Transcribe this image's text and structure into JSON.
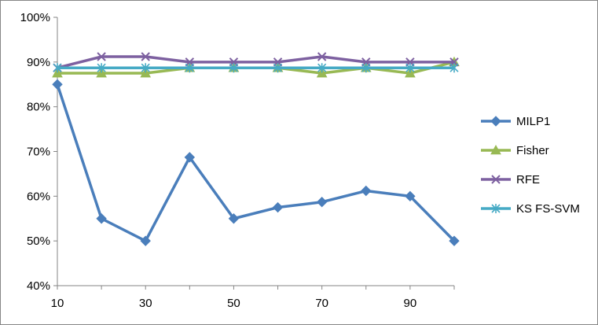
{
  "chart_data": {
    "type": "line",
    "title": "",
    "xlabel": "",
    "ylabel": "",
    "x": [
      10,
      20,
      30,
      40,
      50,
      60,
      70,
      80,
      90,
      100
    ],
    "x_tick_labels": [
      "10",
      "30",
      "50",
      "70",
      "90"
    ],
    "x_tick_values": [
      10,
      30,
      50,
      70,
      90
    ],
    "y_tick_labels": [
      "40%",
      "50%",
      "60%",
      "70%",
      "80%",
      "90%",
      "100%"
    ],
    "y_tick_values": [
      40,
      50,
      60,
      70,
      80,
      90,
      100
    ],
    "ylim": [
      40,
      100
    ],
    "grid": false,
    "legend_position": "right",
    "series": [
      {
        "name": "MILP1",
        "marker": "diamond",
        "color": "#4a7ebb",
        "values": [
          85,
          55,
          50,
          68.7,
          55,
          57.5,
          58.7,
          61.2,
          60,
          50
        ]
      },
      {
        "name": "Fisher",
        "marker": "triangle",
        "color": "#98b954",
        "values": [
          87.5,
          87.5,
          87.5,
          88.7,
          88.7,
          88.7,
          87.5,
          88.7,
          87.5,
          90
        ]
      },
      {
        "name": "RFE",
        "marker": "x",
        "color": "#7d60a0",
        "values": [
          88.7,
          91.2,
          91.2,
          90,
          90,
          90,
          91.2,
          90,
          90,
          90
        ]
      },
      {
        "name": "KS FS-SVM",
        "marker": "star",
        "color": "#46aac5",
        "values": [
          88.7,
          88.7,
          88.7,
          88.7,
          88.7,
          88.7,
          88.7,
          88.7,
          88.7,
          88.7
        ]
      }
    ]
  }
}
